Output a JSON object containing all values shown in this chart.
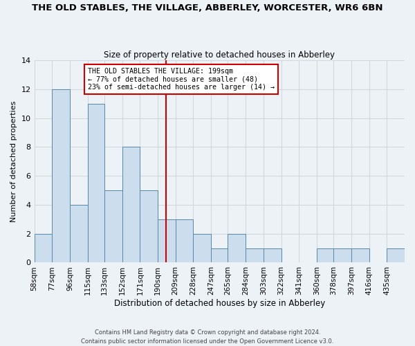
{
  "title": "THE OLD STABLES, THE VILLAGE, ABBERLEY, WORCESTER, WR6 6BN",
  "subtitle": "Size of property relative to detached houses in Abberley",
  "xlabel": "Distribution of detached houses by size in Abberley",
  "ylabel": "Number of detached properties",
  "bin_labels": [
    "58sqm",
    "77sqm",
    "96sqm",
    "115sqm",
    "133sqm",
    "152sqm",
    "171sqm",
    "190sqm",
    "209sqm",
    "228sqm",
    "247sqm",
    "265sqm",
    "284sqm",
    "303sqm",
    "322sqm",
    "341sqm",
    "360sqm",
    "378sqm",
    "397sqm",
    "416sqm",
    "435sqm"
  ],
  "bin_edges": [
    58,
    77,
    96,
    115,
    133,
    152,
    171,
    190,
    209,
    228,
    247,
    265,
    284,
    303,
    322,
    341,
    360,
    378,
    397,
    416,
    435
  ],
  "bar_heights": [
    2,
    12,
    4,
    11,
    5,
    8,
    5,
    3,
    3,
    2,
    1,
    2,
    1,
    1,
    0,
    0,
    1,
    1,
    1,
    0,
    1
  ],
  "bar_color": "#ccdded",
  "bar_edge_color": "#5588aa",
  "reference_line_x": 199,
  "reference_line_color": "#cc0000",
  "annotation_text": "THE OLD STABLES THE VILLAGE: 199sqm\n← 77% of detached houses are smaller (48)\n23% of semi-detached houses are larger (14) →",
  "annotation_box_color": "#ffffff",
  "annotation_box_edge": "#cc0000",
  "ylim": [
    0,
    14
  ],
  "yticks": [
    0,
    2,
    4,
    6,
    8,
    10,
    12,
    14
  ],
  "grid_color": "#d0d8e0",
  "background_color": "#edf2f7",
  "footer_line1": "Contains HM Land Registry data © Crown copyright and database right 2024.",
  "footer_line2": "Contains public sector information licensed under the Open Government Licence v3.0."
}
